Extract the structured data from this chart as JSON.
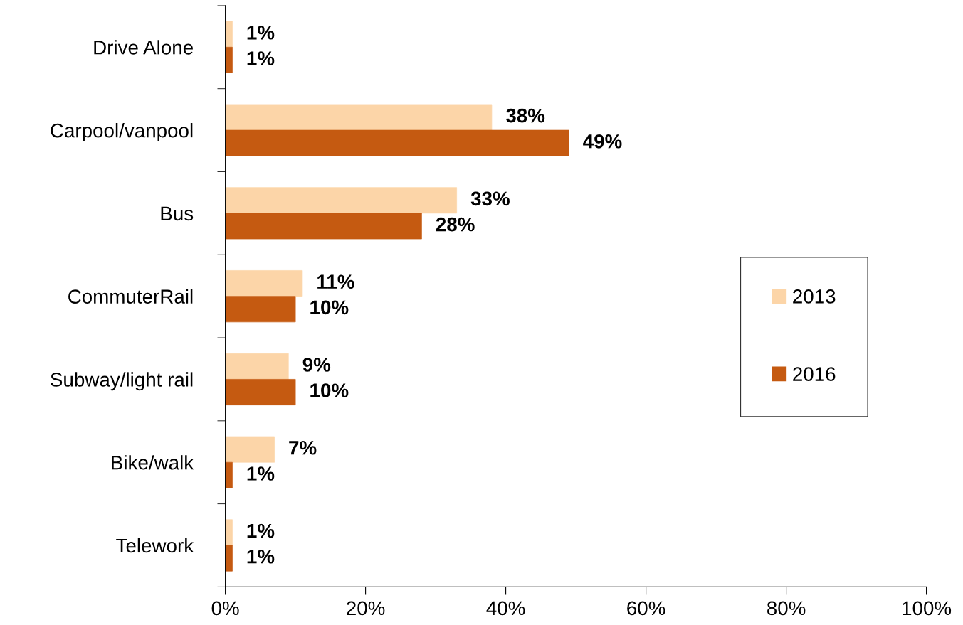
{
  "chart_data": {
    "type": "bar",
    "orientation": "horizontal",
    "categories": [
      "Drive Alone",
      "Carpool/vanpool",
      "Bus",
      "CommuterRail",
      "Subway/light rail",
      "Bike/walk",
      "Telework"
    ],
    "series": [
      {
        "name": "2013",
        "color": "#fcd5a8",
        "values": [
          1,
          38,
          33,
          11,
          9,
          7,
          1
        ],
        "value_labels": [
          "1%",
          "38%",
          "33%",
          "11%",
          "9%",
          "7%",
          "1%"
        ]
      },
      {
        "name": "2016",
        "color": "#c55a11",
        "values": [
          1,
          49,
          28,
          10,
          10,
          1,
          1
        ],
        "value_labels": [
          "1%",
          "49%",
          "28%",
          "10%",
          "10%",
          "1%",
          "1%"
        ]
      }
    ],
    "xlim": [
      0,
      100
    ],
    "xticks": [
      {
        "value": 0,
        "label": "0%"
      },
      {
        "value": 20,
        "label": "20%"
      },
      {
        "value": 40,
        "label": "40%"
      },
      {
        "value": 60,
        "label": "60%"
      },
      {
        "value": 80,
        "label": "80%"
      },
      {
        "value": 100,
        "label": "100%"
      }
    ],
    "grid": false,
    "legend": "right"
  }
}
